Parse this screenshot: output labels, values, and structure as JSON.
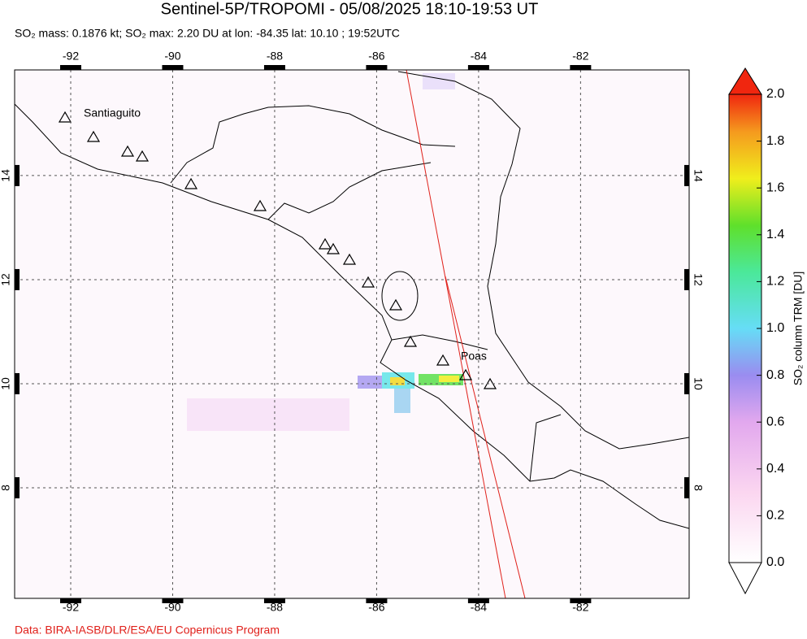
{
  "header": {
    "title": "Sentinel-5P/TROPOMI - 05/08/2025 18:10-19:53 UT",
    "subtitle": "SO₂ mass: 0.1876 kt; SO₂ max: 2.20 DU at lon: -84.35 lat: 10.10 ; 19:52UTC"
  },
  "map": {
    "xlim": [
      -93.1,
      -79.87
    ],
    "ylim": [
      5.875,
      16.03
    ],
    "xticks": [
      -92,
      -90,
      -88,
      -86,
      -84,
      -82
    ],
    "yticks": [
      8,
      10,
      12,
      14
    ],
    "grid": true,
    "volcano_labels": [
      "Santiaguito",
      "Poas"
    ]
  },
  "colorbar": {
    "label": "SO₂ column TRM [DU]",
    "lim": [
      0,
      2
    ],
    "ticks": [
      {
        "value": 0,
        "label": "0.0"
      },
      {
        "value": 0.2,
        "label": "0.2"
      },
      {
        "value": 0.4,
        "label": "0.4"
      },
      {
        "value": 0.6,
        "label": "0.6"
      },
      {
        "value": 0.8,
        "label": "0.8"
      },
      {
        "value": 1,
        "label": "1.0"
      },
      {
        "value": 1.2,
        "label": "1.2"
      },
      {
        "value": 1.4,
        "label": "1.4"
      },
      {
        "value": 1.6,
        "label": "1.6"
      },
      {
        "value": 1.8,
        "label": "1.8"
      },
      {
        "value": 2,
        "label": "2.0"
      }
    ]
  },
  "footer": "Data: BIRA-IASB/DLR/ESA/EU Copernicus Program"
}
